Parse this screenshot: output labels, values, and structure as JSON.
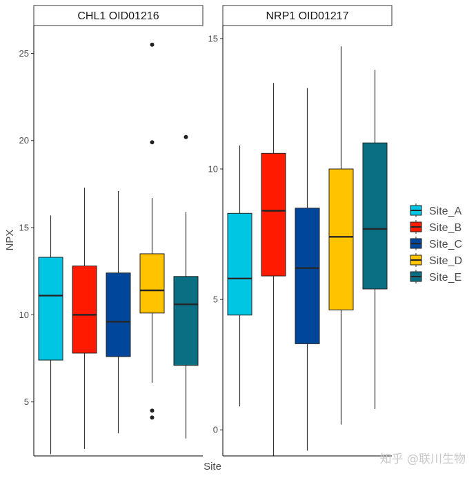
{
  "chart_data": {
    "type": "boxplot",
    "ylabel": "NPX",
    "xlabel": "Site",
    "legend_position": "right",
    "groups": [
      "Site_A",
      "Site_B",
      "Site_C",
      "Site_D",
      "Site_E"
    ],
    "colors": {
      "Site_A": "#00C5E3",
      "Site_B": "#FF1A00",
      "Site_C": "#00479B",
      "Site_D": "#FFC300",
      "Site_E": "#0A6F83"
    },
    "panels": [
      {
        "title": "CHL1 OID01216",
        "ylim": [
          1.9,
          26.6
        ],
        "yticks": [
          "5",
          "10",
          "15",
          "20",
          "25"
        ],
        "boxes": [
          {
            "group": "Site_A",
            "whisker_low": 2.0,
            "q1": 7.4,
            "median": 11.1,
            "q3": 13.3,
            "whisker_high": 15.7,
            "outliers": []
          },
          {
            "group": "Site_B",
            "whisker_low": 2.3,
            "q1": 7.8,
            "median": 10.0,
            "q3": 12.8,
            "whisker_high": 17.3,
            "outliers": []
          },
          {
            "group": "Site_C",
            "whisker_low": 3.2,
            "q1": 7.6,
            "median": 9.6,
            "q3": 12.4,
            "whisker_high": 17.1,
            "outliers": []
          },
          {
            "group": "Site_D",
            "whisker_low": 6.1,
            "q1": 10.1,
            "median": 11.4,
            "q3": 13.5,
            "whisker_high": 16.7,
            "outliers": [
              25.5,
              19.9,
              4.5,
              4.1
            ]
          },
          {
            "group": "Site_E",
            "whisker_low": 2.9,
            "q1": 7.1,
            "median": 10.6,
            "q3": 12.2,
            "whisker_high": 15.9,
            "outliers": [
              20.2
            ]
          }
        ]
      },
      {
        "title": "NRP1 OID01217",
        "ylim": [
          -1.0,
          15.5
        ],
        "yticks": [
          "0",
          "5",
          "10",
          "15"
        ],
        "boxes": [
          {
            "group": "Site_A",
            "whisker_low": 0.9,
            "q1": 4.4,
            "median": 5.8,
            "q3": 8.3,
            "whisker_high": 10.9,
            "outliers": []
          },
          {
            "group": "Site_B",
            "whisker_low": -1.0,
            "q1": 5.9,
            "median": 8.4,
            "q3": 10.6,
            "whisker_high": 13.3,
            "outliers": []
          },
          {
            "group": "Site_C",
            "whisker_low": -0.8,
            "q1": 3.3,
            "median": 6.2,
            "q3": 8.5,
            "whisker_high": 13.1,
            "outliers": []
          },
          {
            "group": "Site_D",
            "whisker_low": 0.2,
            "q1": 4.6,
            "median": 7.4,
            "q3": 10.0,
            "whisker_high": 14.7,
            "outliers": []
          },
          {
            "group": "Site_E",
            "whisker_low": 0.8,
            "q1": 5.4,
            "median": 7.7,
            "q3": 11.0,
            "whisker_high": 13.8,
            "outliers": []
          }
        ]
      }
    ]
  },
  "watermark": "知乎 @联川生物"
}
